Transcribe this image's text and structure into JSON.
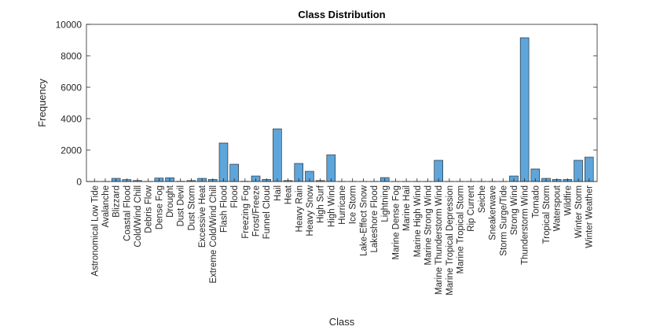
{
  "chart_data": {
    "type": "bar",
    "title": "Class Distribution",
    "xlabel": "Class",
    "ylabel": "Frequency",
    "ylim": [
      0,
      10000
    ],
    "yticks": [
      0,
      2000,
      4000,
      6000,
      8000,
      10000
    ],
    "ytick_labels": [
      "0",
      "2000",
      "4000",
      "6000",
      "8000",
      "10000"
    ],
    "grid": false,
    "bar_color": "#5DA5DA",
    "categories": [
      "Astronomical Low Tide",
      "Avalanche",
      "Blizzard",
      "Coastal Flood",
      "Cold/Wind Chill",
      "Debris Flow",
      "Dense Fog",
      "Drought",
      "Dust Devil",
      "Dust Storm",
      "Excessive Heat",
      "Extreme Cold/Wind Chill",
      "Flash Flood",
      "Flood",
      "Freezing Fog",
      "Frost/Freeze",
      "Funnel Cloud",
      "Hail",
      "Heat",
      "Heavy Rain",
      "Heavy Snow",
      "High Surf",
      "High Wind",
      "Hurricane",
      "Ice Storm",
      "Lake-Effect Snow",
      "Lakeshore Flood",
      "Lightning",
      "Marine Dense Fog",
      "Marine Hail",
      "Marine High Wind",
      "Marine Strong Wind",
      "Marine Thunderstorm Wind",
      "Marine Tropical Depression",
      "Marine Tropical Storm",
      "Rip Current",
      "Seiche",
      "Sneakerwave",
      "Storm Surge/Tide",
      "Strong Wind",
      "Thunderstorm Wind",
      "Tornado",
      "Tropical Storm",
      "Waterspout",
      "Wildfire",
      "Winter Storm",
      "Winter Weather"
    ],
    "values": [
      10,
      10,
      200,
      120,
      60,
      10,
      220,
      240,
      15,
      60,
      200,
      130,
      2450,
      1100,
      15,
      350,
      130,
      3350,
      60,
      1150,
      650,
      60,
      1700,
      10,
      10,
      10,
      10,
      250,
      10,
      10,
      10,
      10,
      1350,
      10,
      10,
      10,
      10,
      10,
      10,
      350,
      9150,
      800,
      200,
      130,
      130,
      1350,
      1550
    ]
  }
}
